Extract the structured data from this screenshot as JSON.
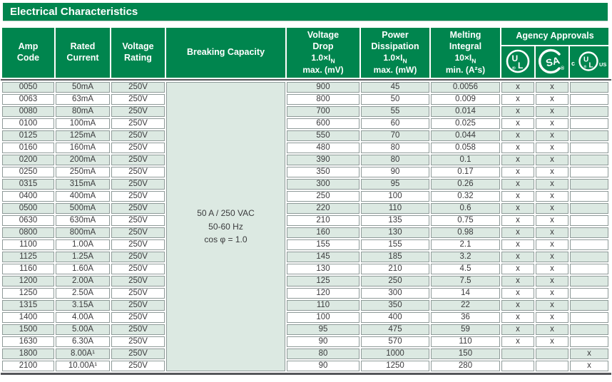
{
  "title": "Electrical Characteristics",
  "colors": {
    "brand_green": "#00854e",
    "row_tint_green": "#dce9e2",
    "cell_border_gray": "#8e9a98",
    "heavy_rule_gray": "#55565a",
    "header_text": "#ffffff",
    "body_text": "#3a3a3c"
  },
  "table": {
    "headers": {
      "amp_code": "Amp\nCode",
      "rated_current": "Rated\nCurrent",
      "voltage_rating": "Voltage\nRating",
      "breaking_capacity": "Breaking Capacity",
      "voltage_drop": {
        "line1": "Voltage\nDrop",
        "factor": "1.0×I",
        "factor_sub": "N",
        "line3": "max.  (mV)"
      },
      "power_dissipation": {
        "line1": "Power\nDissipation",
        "factor": "1.0×I",
        "factor_sub": "N",
        "line3": "max. (mW)"
      },
      "melting_integral": {
        "line1": "Melting\nIntegral",
        "factor": "10×I",
        "factor_sub": "N",
        "line3": "min. (A²s)"
      },
      "agency": "Agency Approvals"
    },
    "agency_icons": {
      "ul": {
        "u": "U",
        "l": "L",
        "reg": "®"
      },
      "csa": {
        "letters": "SA",
        "reg": "®"
      },
      "cul": {
        "prefix": "c",
        "u": "U",
        "l": "L",
        "reg": "®",
        "suffix": "US"
      }
    },
    "breaking_capacity_lines": [
      "50 A / 250 VAC",
      "50-60 Hz",
      "cos φ = 1.0"
    ],
    "rows": [
      {
        "code": "0050",
        "current": "50mA",
        "voltage": "250V",
        "vdrop": "900",
        "pdiss": "45",
        "melt": "0.0056",
        "ul": "x",
        "csa": "x",
        "culus": ""
      },
      {
        "code": "0063",
        "current": "63mA",
        "voltage": "250V",
        "vdrop": "800",
        "pdiss": "50",
        "melt": "0.009",
        "ul": "x",
        "csa": "x",
        "culus": ""
      },
      {
        "code": "0080",
        "current": "80mA",
        "voltage": "250V",
        "vdrop": "700",
        "pdiss": "55",
        "melt": "0.014",
        "ul": "x",
        "csa": "x",
        "culus": ""
      },
      {
        "code": "0100",
        "current": "100mA",
        "voltage": "250V",
        "vdrop": "600",
        "pdiss": "60",
        "melt": "0.025",
        "ul": "x",
        "csa": "x",
        "culus": ""
      },
      {
        "code": "0125",
        "current": "125mA",
        "voltage": "250V",
        "vdrop": "550",
        "pdiss": "70",
        "melt": "0.044",
        "ul": "x",
        "csa": "x",
        "culus": ""
      },
      {
        "code": "0160",
        "current": "160mA",
        "voltage": "250V",
        "vdrop": "480",
        "pdiss": "80",
        "melt": "0.058",
        "ul": "x",
        "csa": "x",
        "culus": ""
      },
      {
        "code": "0200",
        "current": "200mA",
        "voltage": "250V",
        "vdrop": "390",
        "pdiss": "80",
        "melt": "0.1",
        "ul": "x",
        "csa": "x",
        "culus": ""
      },
      {
        "code": "0250",
        "current": "250mA",
        "voltage": "250V",
        "vdrop": "350",
        "pdiss": "90",
        "melt": "0.17",
        "ul": "x",
        "csa": "x",
        "culus": ""
      },
      {
        "code": "0315",
        "current": "315mA",
        "voltage": "250V",
        "vdrop": "300",
        "pdiss": "95",
        "melt": "0.26",
        "ul": "x",
        "csa": "x",
        "culus": ""
      },
      {
        "code": "0400",
        "current": "400mA",
        "voltage": "250V",
        "vdrop": "250",
        "pdiss": "100",
        "melt": "0.32",
        "ul": "x",
        "csa": "x",
        "culus": ""
      },
      {
        "code": "0500",
        "current": "500mA",
        "voltage": "250V",
        "vdrop": "220",
        "pdiss": "110",
        "melt": "0.6",
        "ul": "x",
        "csa": "x",
        "culus": ""
      },
      {
        "code": "0630",
        "current": "630mA",
        "voltage": "250V",
        "vdrop": "210",
        "pdiss": "135",
        "melt": "0.75",
        "ul": "x",
        "csa": "x",
        "culus": ""
      },
      {
        "code": "0800",
        "current": "800mA",
        "voltage": "250V",
        "vdrop": "160",
        "pdiss": "130",
        "melt": "0.98",
        "ul": "x",
        "csa": "x",
        "culus": ""
      },
      {
        "code": "1100",
        "current": "1.00A",
        "voltage": "250V",
        "vdrop": "155",
        "pdiss": "155",
        "melt": "2.1",
        "ul": "x",
        "csa": "x",
        "culus": ""
      },
      {
        "code": "1125",
        "current": "1.25A",
        "voltage": "250V",
        "vdrop": "145",
        "pdiss": "185",
        "melt": "3.2",
        "ul": "x",
        "csa": "x",
        "culus": ""
      },
      {
        "code": "1160",
        "current": "1.60A",
        "voltage": "250V",
        "vdrop": "130",
        "pdiss": "210",
        "melt": "4.5",
        "ul": "x",
        "csa": "x",
        "culus": ""
      },
      {
        "code": "1200",
        "current": "2.00A",
        "voltage": "250V",
        "vdrop": "125",
        "pdiss": "250",
        "melt": "7.5",
        "ul": "x",
        "csa": "x",
        "culus": ""
      },
      {
        "code": "1250",
        "current": "2.50A",
        "voltage": "250V",
        "vdrop": "120",
        "pdiss": "300",
        "melt": "14",
        "ul": "x",
        "csa": "x",
        "culus": ""
      },
      {
        "code": "1315",
        "current": "3.15A",
        "voltage": "250V",
        "vdrop": "110",
        "pdiss": "350",
        "melt": "22",
        "ul": "x",
        "csa": "x",
        "culus": ""
      },
      {
        "code": "1400",
        "current": "4.00A",
        "voltage": "250V",
        "vdrop": "100",
        "pdiss": "400",
        "melt": "36",
        "ul": "x",
        "csa": "x",
        "culus": ""
      },
      {
        "code": "1500",
        "current": "5.00A",
        "voltage": "250V",
        "vdrop": "95",
        "pdiss": "475",
        "melt": "59",
        "ul": "x",
        "csa": "x",
        "culus": ""
      },
      {
        "code": "1630",
        "current": "6.30A",
        "voltage": "250V",
        "vdrop": "90",
        "pdiss": "570",
        "melt": "110",
        "ul": "x",
        "csa": "x",
        "culus": ""
      },
      {
        "code": "1800",
        "current": "8.00A¹",
        "voltage": "250V",
        "vdrop": "80",
        "pdiss": "1000",
        "melt": "150",
        "ul": "",
        "csa": "",
        "culus": "x"
      },
      {
        "code": "2100",
        "current": "10.00A¹",
        "voltage": "250V",
        "vdrop": "90",
        "pdiss": "1250",
        "melt": "280",
        "ul": "",
        "csa": "",
        "culus": "x"
      }
    ]
  }
}
